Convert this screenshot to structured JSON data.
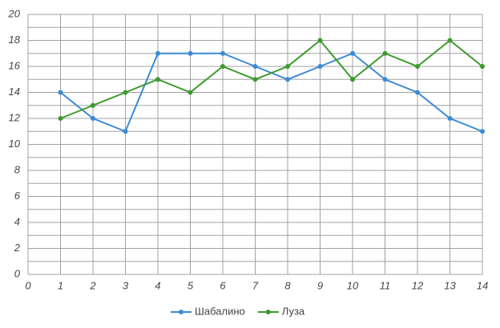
{
  "chart_data": {
    "type": "line",
    "x": [
      1,
      2,
      3,
      4,
      5,
      6,
      7,
      8,
      9,
      10,
      11,
      12,
      13,
      14
    ],
    "series": [
      {
        "name": "Шабалино",
        "color": "#3a8ad4",
        "values": [
          14,
          12,
          11,
          17,
          17,
          17,
          16,
          15,
          16,
          17,
          15,
          14,
          12,
          11
        ]
      },
      {
        "name": "Луза",
        "color": "#3c9a2c",
        "values": [
          12,
          13,
          14,
          15,
          14,
          16,
          15,
          16,
          18,
          15,
          17,
          16,
          18,
          16
        ]
      }
    ],
    "xlim": [
      0,
      14
    ],
    "xticks": [
      0,
      1,
      2,
      3,
      4,
      5,
      6,
      7,
      8,
      9,
      10,
      11,
      12,
      13,
      14
    ],
    "ylim": [
      0,
      20
    ],
    "yticks": [
      0,
      2,
      4,
      6,
      8,
      10,
      12,
      14,
      16,
      18,
      20
    ],
    "yminor": [
      1,
      3,
      5,
      7,
      9,
      11,
      13,
      15,
      17,
      19
    ],
    "grid": true,
    "legend": "bottom"
  }
}
